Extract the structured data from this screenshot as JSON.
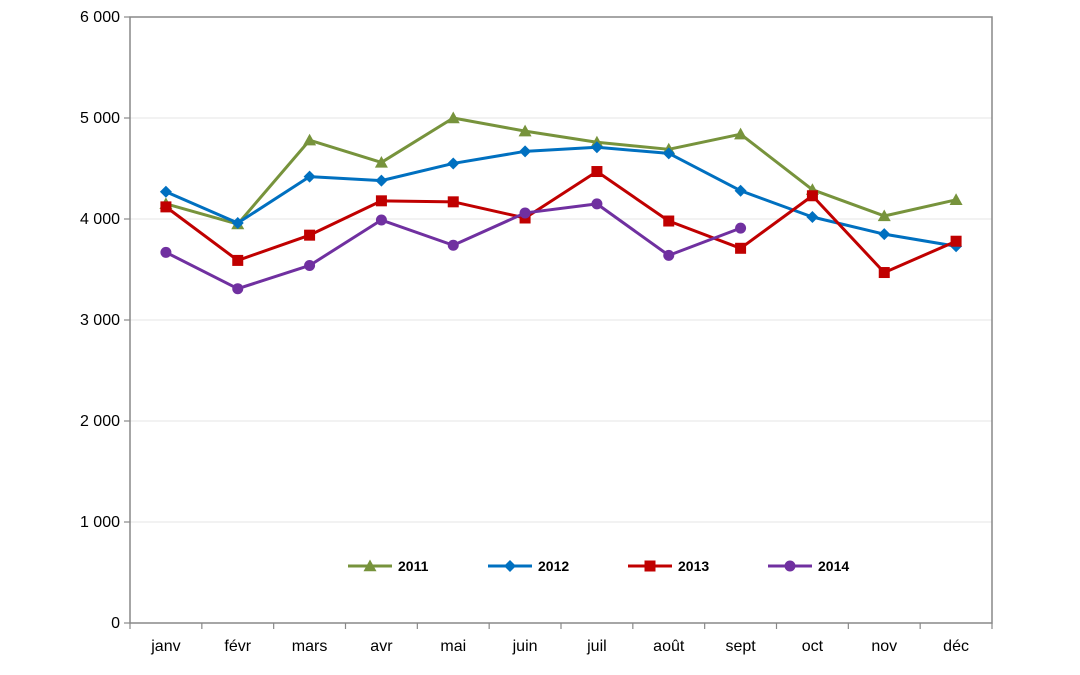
{
  "chart_data": {
    "type": "line",
    "title": "",
    "xlabel": "",
    "ylabel": "",
    "categories": [
      "janv",
      "févr",
      "mars",
      "avr",
      "mai",
      "juin",
      "juil",
      "août",
      "sept",
      "oct",
      "nov",
      "déc"
    ],
    "ylim": [
      0,
      6000
    ],
    "yticks": [
      0,
      1000,
      2000,
      3000,
      4000,
      5000,
      6000
    ],
    "ytick_labels": [
      "0",
      "1 000",
      "2 000",
      "3 000",
      "4 000",
      "5 000",
      "6 000"
    ],
    "grid": true,
    "legend_position": "bottom-center",
    "series": [
      {
        "name": "2011",
        "color": "#77933c",
        "marker": "triangle",
        "values": [
          4150,
          3950,
          4780,
          4560,
          5000,
          4870,
          4760,
          4690,
          4840,
          4290,
          4030,
          4190
        ]
      },
      {
        "name": "2012",
        "color": "#0070c0",
        "marker": "diamond",
        "values": [
          4270,
          3960,
          4420,
          4380,
          4550,
          4670,
          4710,
          4650,
          4280,
          4020,
          3850,
          3730
        ]
      },
      {
        "name": "2013",
        "color": "#c00000",
        "marker": "square",
        "values": [
          4120,
          3590,
          3840,
          4180,
          4170,
          4010,
          4470,
          3980,
          3710,
          4230,
          3470,
          3780
        ]
      },
      {
        "name": "2014",
        "color": "#7030a0",
        "marker": "circle",
        "values": [
          3670,
          3310,
          3540,
          3990,
          3740,
          4060,
          4150,
          3640,
          3910,
          null,
          null,
          null
        ]
      }
    ]
  }
}
